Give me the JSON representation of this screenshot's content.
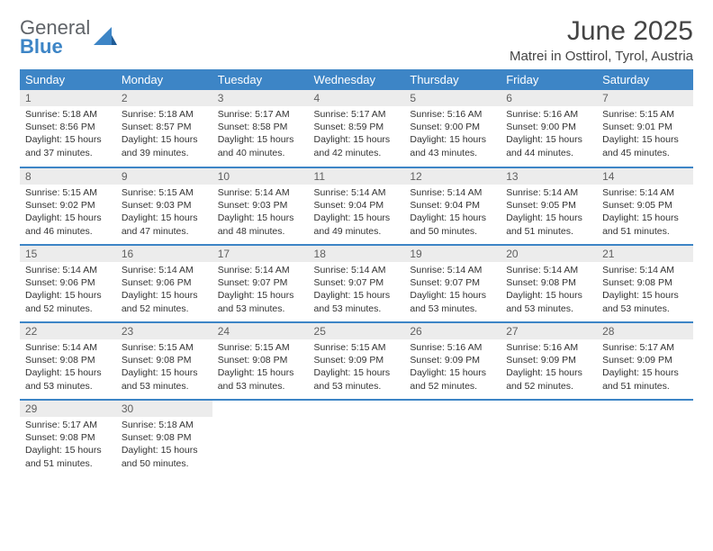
{
  "brand": {
    "line1": "General",
    "line2": "Blue"
  },
  "title": "June 2025",
  "subtitle": "Matrei in Osttirol, Tyrol, Austria",
  "colors": {
    "header_bg": "#3d85c6",
    "daynum_bg": "#ececec",
    "text": "#333333"
  },
  "weekdays": [
    "Sunday",
    "Monday",
    "Tuesday",
    "Wednesday",
    "Thursday",
    "Friday",
    "Saturday"
  ],
  "weeks": [
    [
      {
        "n": "1",
        "sr": "5:18 AM",
        "ss": "8:56 PM",
        "dl": "15 hours and 37 minutes."
      },
      {
        "n": "2",
        "sr": "5:18 AM",
        "ss": "8:57 PM",
        "dl": "15 hours and 39 minutes."
      },
      {
        "n": "3",
        "sr": "5:17 AM",
        "ss": "8:58 PM",
        "dl": "15 hours and 40 minutes."
      },
      {
        "n": "4",
        "sr": "5:17 AM",
        "ss": "8:59 PM",
        "dl": "15 hours and 42 minutes."
      },
      {
        "n": "5",
        "sr": "5:16 AM",
        "ss": "9:00 PM",
        "dl": "15 hours and 43 minutes."
      },
      {
        "n": "6",
        "sr": "5:16 AM",
        "ss": "9:00 PM",
        "dl": "15 hours and 44 minutes."
      },
      {
        "n": "7",
        "sr": "5:15 AM",
        "ss": "9:01 PM",
        "dl": "15 hours and 45 minutes."
      }
    ],
    [
      {
        "n": "8",
        "sr": "5:15 AM",
        "ss": "9:02 PM",
        "dl": "15 hours and 46 minutes."
      },
      {
        "n": "9",
        "sr": "5:15 AM",
        "ss": "9:03 PM",
        "dl": "15 hours and 47 minutes."
      },
      {
        "n": "10",
        "sr": "5:14 AM",
        "ss": "9:03 PM",
        "dl": "15 hours and 48 minutes."
      },
      {
        "n": "11",
        "sr": "5:14 AM",
        "ss": "9:04 PM",
        "dl": "15 hours and 49 minutes."
      },
      {
        "n": "12",
        "sr": "5:14 AM",
        "ss": "9:04 PM",
        "dl": "15 hours and 50 minutes."
      },
      {
        "n": "13",
        "sr": "5:14 AM",
        "ss": "9:05 PM",
        "dl": "15 hours and 51 minutes."
      },
      {
        "n": "14",
        "sr": "5:14 AM",
        "ss": "9:05 PM",
        "dl": "15 hours and 51 minutes."
      }
    ],
    [
      {
        "n": "15",
        "sr": "5:14 AM",
        "ss": "9:06 PM",
        "dl": "15 hours and 52 minutes."
      },
      {
        "n": "16",
        "sr": "5:14 AM",
        "ss": "9:06 PM",
        "dl": "15 hours and 52 minutes."
      },
      {
        "n": "17",
        "sr": "5:14 AM",
        "ss": "9:07 PM",
        "dl": "15 hours and 53 minutes."
      },
      {
        "n": "18",
        "sr": "5:14 AM",
        "ss": "9:07 PM",
        "dl": "15 hours and 53 minutes."
      },
      {
        "n": "19",
        "sr": "5:14 AM",
        "ss": "9:07 PM",
        "dl": "15 hours and 53 minutes."
      },
      {
        "n": "20",
        "sr": "5:14 AM",
        "ss": "9:08 PM",
        "dl": "15 hours and 53 minutes."
      },
      {
        "n": "21",
        "sr": "5:14 AM",
        "ss": "9:08 PM",
        "dl": "15 hours and 53 minutes."
      }
    ],
    [
      {
        "n": "22",
        "sr": "5:14 AM",
        "ss": "9:08 PM",
        "dl": "15 hours and 53 minutes."
      },
      {
        "n": "23",
        "sr": "5:15 AM",
        "ss": "9:08 PM",
        "dl": "15 hours and 53 minutes."
      },
      {
        "n": "24",
        "sr": "5:15 AM",
        "ss": "9:08 PM",
        "dl": "15 hours and 53 minutes."
      },
      {
        "n": "25",
        "sr": "5:15 AM",
        "ss": "9:09 PM",
        "dl": "15 hours and 53 minutes."
      },
      {
        "n": "26",
        "sr": "5:16 AM",
        "ss": "9:09 PM",
        "dl": "15 hours and 52 minutes."
      },
      {
        "n": "27",
        "sr": "5:16 AM",
        "ss": "9:09 PM",
        "dl": "15 hours and 52 minutes."
      },
      {
        "n": "28",
        "sr": "5:17 AM",
        "ss": "9:09 PM",
        "dl": "15 hours and 51 minutes."
      }
    ],
    [
      {
        "n": "29",
        "sr": "5:17 AM",
        "ss": "9:08 PM",
        "dl": "15 hours and 51 minutes."
      },
      {
        "n": "30",
        "sr": "5:18 AM",
        "ss": "9:08 PM",
        "dl": "15 hours and 50 minutes."
      },
      null,
      null,
      null,
      null,
      null
    ]
  ],
  "labels": {
    "sunrise": "Sunrise: ",
    "sunset": "Sunset: ",
    "daylight": "Daylight: "
  }
}
